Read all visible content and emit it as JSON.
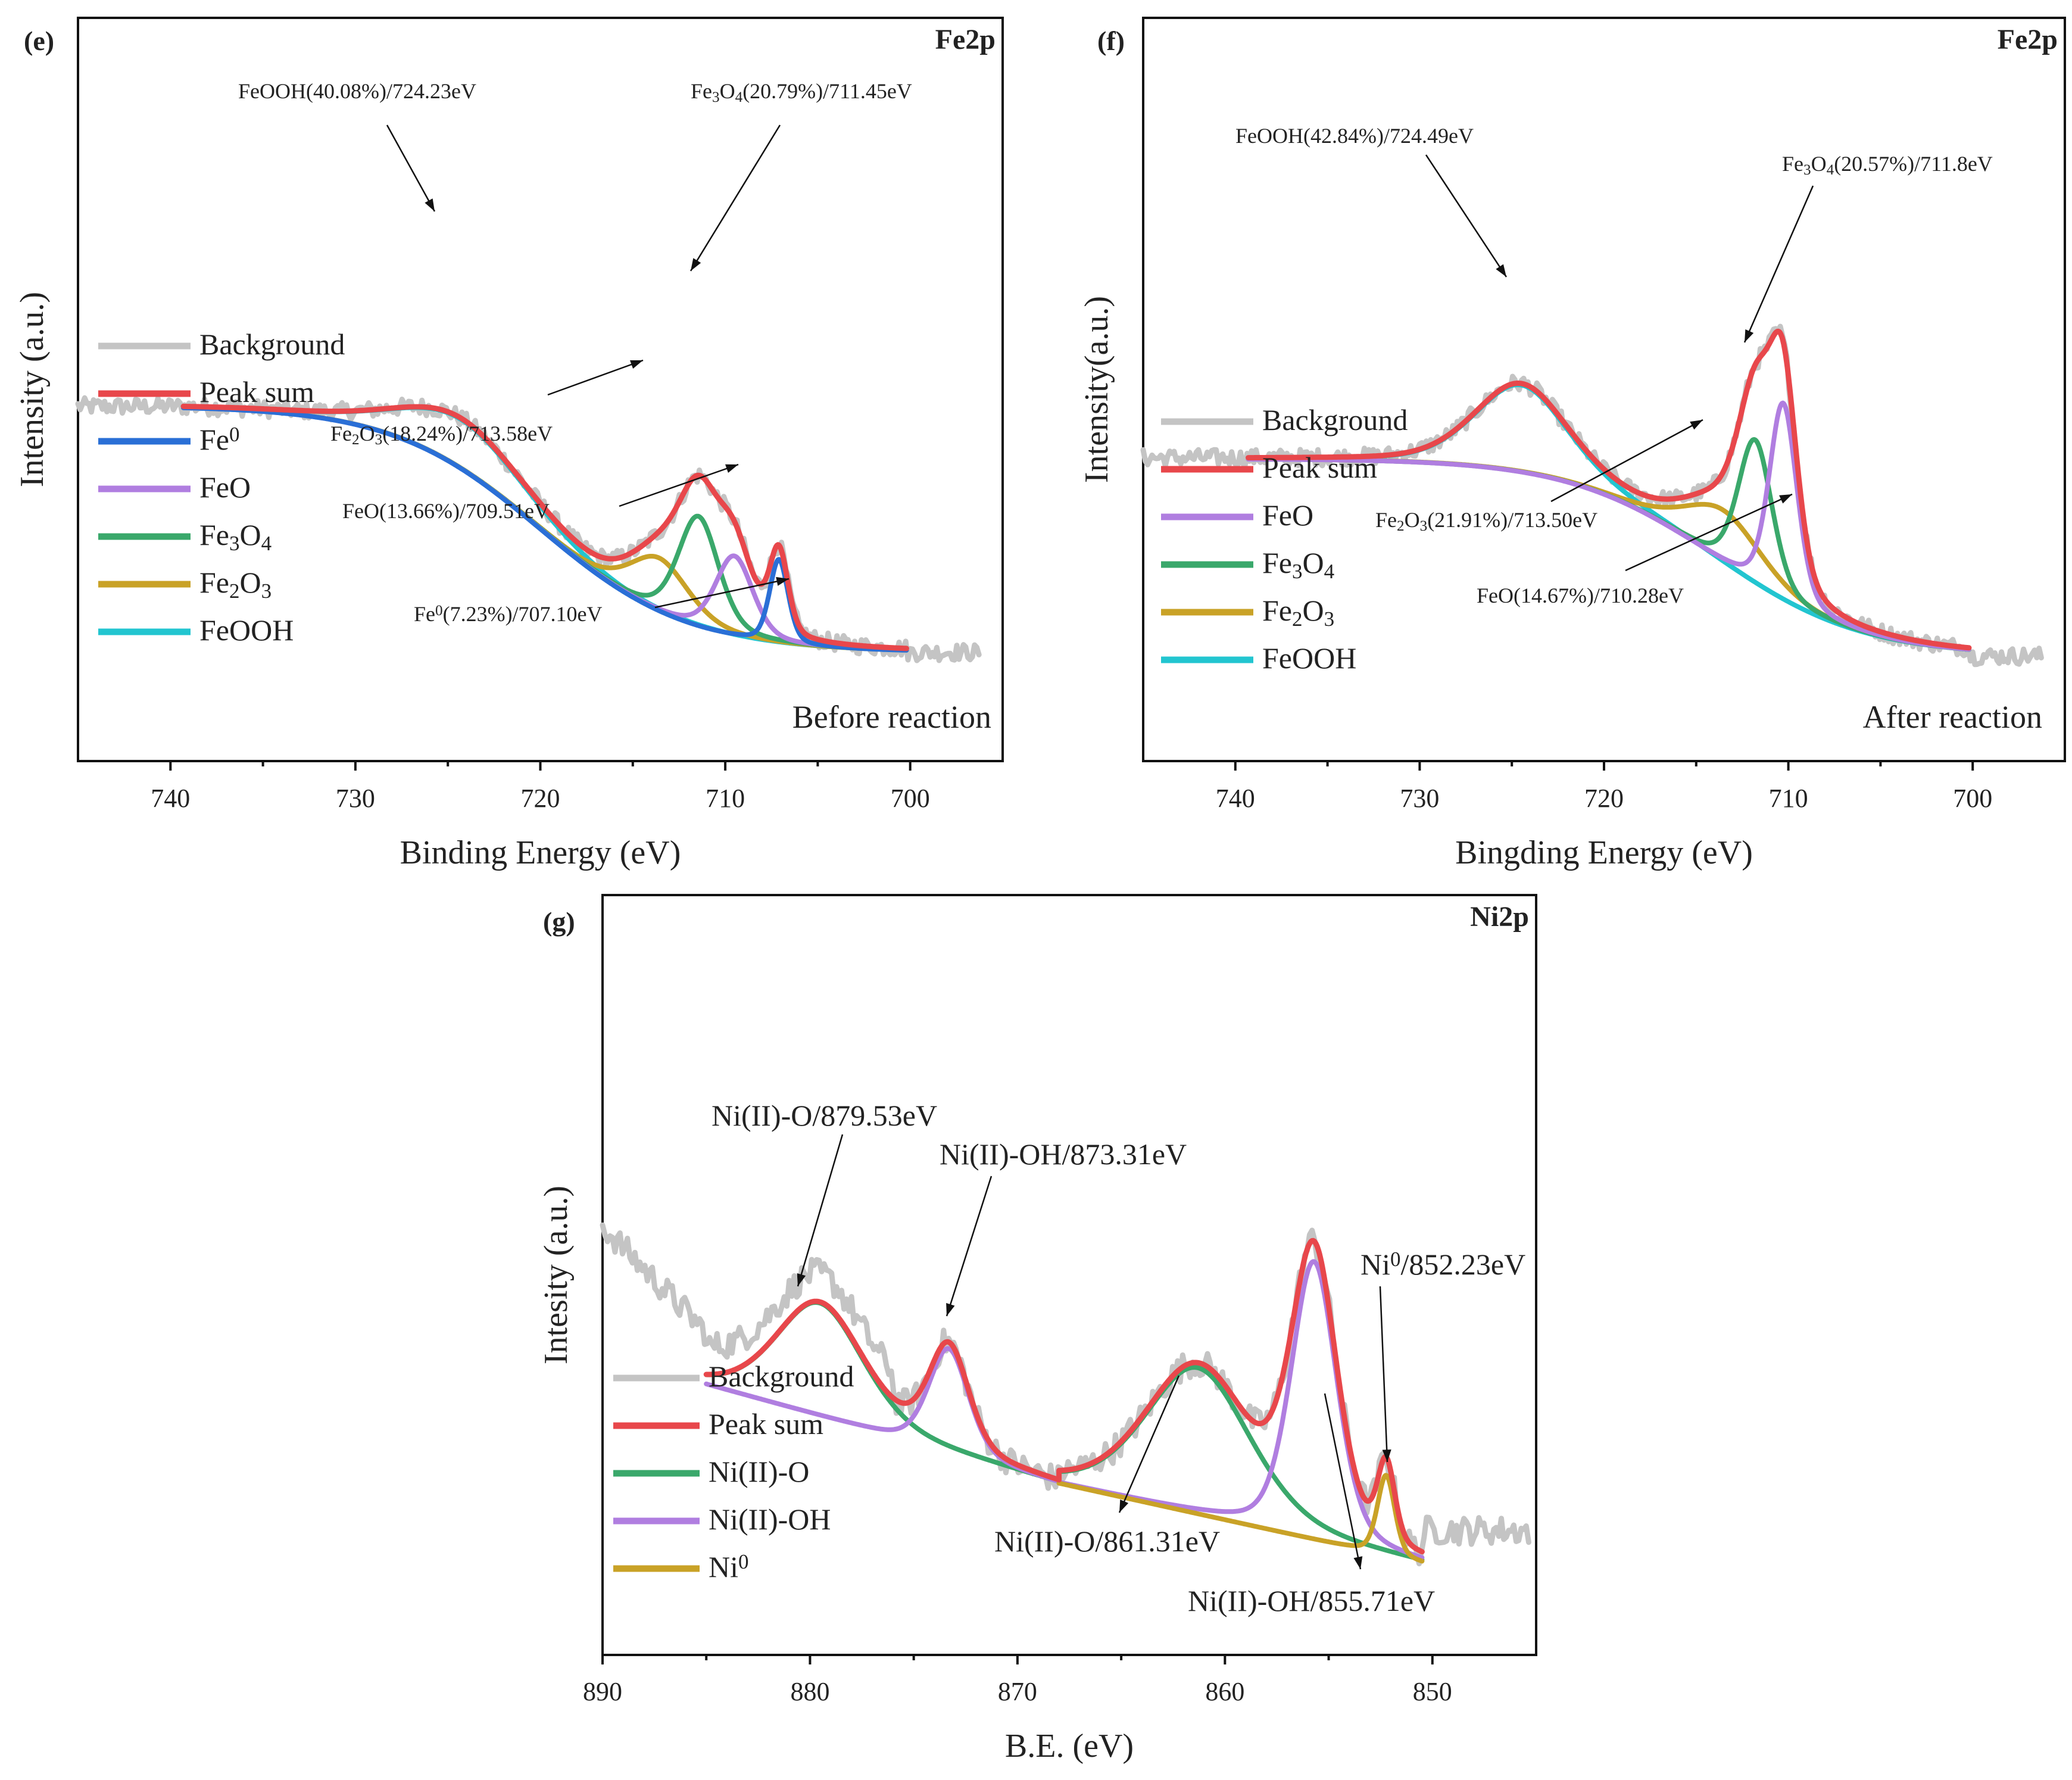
{
  "chart_data": [
    {
      "panel": "(e)",
      "type": "line",
      "element": "Fe2p",
      "condition": "Before reaction",
      "xlabel": "Binding Energy (eV)",
      "ylabel": "Intensity (a.u.)",
      "xlim": [
        745,
        695
      ],
      "ylim": [
        0,
        1
      ],
      "x_ticks": [
        "740",
        "730",
        "720",
        "710",
        "700"
      ],
      "legend": [
        {
          "id": "background",
          "label": "Background",
          "color": "#c4c4c4"
        },
        {
          "id": "peak_sum",
          "label": "Peak sum",
          "color": "#e8474b"
        },
        {
          "id": "fe0",
          "label": "Fe",
          "sup": "0",
          "color": "#2a6fd6"
        },
        {
          "id": "feo",
          "label": "FeO",
          "color": "#b07ee0"
        },
        {
          "id": "fe3o4",
          "label": "Fe",
          "sub1": "3",
          "mid": "O",
          "sub2": "4",
          "color": "#3aa86b"
        },
        {
          "id": "fe2o3",
          "label": "Fe",
          "sub1": "2",
          "mid": "O",
          "sub2": "3",
          "color": "#c9a227"
        },
        {
          "id": "feooh",
          "label": "FeOOH",
          "color": "#22c5d0"
        }
      ],
      "baseline": {
        "x_start": 739.3,
        "x_end": 700.2,
        "y_left": 0.8,
        "y_right": 0.15,
        "center": 720,
        "width": 4
      },
      "components": [
        {
          "id": "feooh",
          "center": 724.23,
          "fwhm": 8.0,
          "height": 0.13,
          "percent": "40.08%"
        },
        {
          "id": "fe2o3",
          "center": 713.58,
          "fwhm": 3.8,
          "height": 0.14,
          "percent": "18.24%"
        },
        {
          "id": "fe3o4",
          "center": 711.45,
          "fwhm": 2.6,
          "height": 0.29,
          "percent": "20.79%"
        },
        {
          "id": "feo",
          "center": 709.51,
          "fwhm": 2.4,
          "height": 0.21,
          "percent": "13.66%"
        },
        {
          "id": "fe0",
          "center": 707.1,
          "fwhm": 1.2,
          "height": 0.22,
          "percent": "7.23%"
        }
      ],
      "annotations": [
        {
          "parts": [
            {
              "t": "FeOOH(40.08%)/724.23eV"
            }
          ]
        },
        {
          "parts": [
            {
              "t": "Fe"
            },
            {
              "t": "3",
              "sub": true
            },
            {
              "t": "O"
            },
            {
              "t": "4",
              "sub": true
            },
            {
              "t": "(20.79%)/711.45eV"
            }
          ]
        },
        {
          "parts": [
            {
              "t": "Fe"
            },
            {
              "t": "2",
              "sub": true
            },
            {
              "t": "O"
            },
            {
              "t": "3",
              "sub": true
            },
            {
              "t": "(18.24%)/713.58eV"
            }
          ]
        },
        {
          "parts": [
            {
              "t": "FeO(13.66%)/709.51eV"
            }
          ]
        },
        {
          "parts": [
            {
              "t": "Fe"
            },
            {
              "t": "0",
              "sup": true
            },
            {
              "t": "(7.23%)/707.10eV"
            }
          ]
        }
      ]
    },
    {
      "panel": "(f)",
      "type": "line",
      "element": "Fe2p",
      "condition": "After reaction",
      "xlabel": "Bingding Energy (eV)",
      "ylabel": "Intensity(a.u.)",
      "xlim": [
        745,
        695
      ],
      "ylim": [
        0,
        1
      ],
      "x_ticks": [
        "740",
        "730",
        "720",
        "710",
        "700"
      ],
      "legend": [
        {
          "id": "background",
          "label": "Background",
          "color": "#c4c4c4"
        },
        {
          "id": "peak_sum",
          "label": "Peak sum",
          "color": "#e8474b"
        },
        {
          "id": "feo",
          "label": "FeO",
          "color": "#b07ee0"
        },
        {
          "id": "fe3o4",
          "label": "Fe",
          "sub1": "3",
          "mid": "O",
          "sub2": "4",
          "color": "#3aa86b"
        },
        {
          "id": "fe2o3",
          "label": "Fe",
          "sub1": "2",
          "mid": "O",
          "sub2": "3",
          "color": "#c9a227"
        },
        {
          "id": "feooh",
          "label": "FeOOH",
          "color": "#22c5d0"
        }
      ],
      "baseline": {
        "x_start": 739.3,
        "x_end": 700.2,
        "y_left": 0.66,
        "y_right": 0.14,
        "center": 714,
        "width": 4
      },
      "components": [
        {
          "id": "feooh",
          "center": 724.49,
          "fwhm": 6.0,
          "height": 0.23,
          "percent": "42.84%"
        },
        {
          "id": "fe2o3",
          "center": 713.5,
          "fwhm": 5.0,
          "height": 0.14,
          "percent": "21.91%"
        },
        {
          "id": "fe3o4",
          "center": 711.8,
          "fwhm": 2.2,
          "height": 0.38,
          "percent": "20.57%"
        },
        {
          "id": "feo",
          "center": 710.28,
          "fwhm": 1.8,
          "height": 0.52,
          "percent": "14.67%"
        }
      ],
      "annotations": [
        {
          "parts": [
            {
              "t": "FeOOH(42.84%)/724.49eV"
            }
          ]
        },
        {
          "parts": [
            {
              "t": "Fe"
            },
            {
              "t": "3",
              "sub": true
            },
            {
              "t": "O"
            },
            {
              "t": "4",
              "sub": true
            },
            {
              "t": "(20.57%)/711.8eV"
            }
          ]
        },
        {
          "parts": [
            {
              "t": "Fe"
            },
            {
              "t": "2",
              "sub": true
            },
            {
              "t": "O"
            },
            {
              "t": "3",
              "sub": true
            },
            {
              "t": "(21.91%)/713.50eV"
            }
          ]
        },
        {
          "parts": [
            {
              "t": "FeO(14.67%)/710.28eV"
            }
          ]
        }
      ]
    },
    {
      "panel": "(g)",
      "type": "line",
      "element": "Ni2p",
      "condition": "",
      "xlabel": "B.E. (eV)",
      "ylabel": "Intesity (a.u.)",
      "xlim": [
        890,
        845
      ],
      "ylim": [
        0,
        1
      ],
      "x_ticks": [
        "890",
        "880",
        "870",
        "860",
        "850"
      ],
      "legend": [
        {
          "id": "background",
          "label": "Background",
          "color": "#c4c4c4"
        },
        {
          "id": "peak_sum",
          "label": "Peak sum",
          "color": "#e8474b"
        },
        {
          "id": "nio",
          "label": " Ni(II)-O",
          "color": "#3aa86b"
        },
        {
          "id": "nioh",
          "label": " Ni(II)-OH",
          "color": "#b07ee0"
        },
        {
          "id": "ni0",
          "label": " Ni",
          "sup": "0",
          "color": "#c9a227"
        }
      ],
      "envelopes": [
        {
          "range": [
            885.0,
            868.0
          ],
          "baseline": {
            "y_left": 0.51,
            "y_right": 0.3
          },
          "components": [
            {
              "id": "nio",
              "center": 879.53,
              "fwhm": 5.0,
              "height": 0.24
            },
            {
              "id": "nioh",
              "center": 873.31,
              "fwhm": 2.3,
              "height": 0.22
            }
          ]
        },
        {
          "range": [
            868.0,
            850.5
          ],
          "baseline": {
            "y_left": 0.3,
            "y_right": 0.13
          },
          "components": [
            {
              "id": "nio",
              "center": 861.31,
              "fwhm": 6.0,
              "height": 0.31
            },
            {
              "id": "nioh",
              "center": 855.71,
              "fwhm": 2.6,
              "height": 0.59
            },
            {
              "id": "ni0",
              "center": 852.23,
              "fwhm": 1.0,
              "height": 0.17
            }
          ]
        }
      ],
      "annotations": [
        {
          "parts": [
            {
              "t": "Ni(II)-O/879.53eV"
            }
          ]
        },
        {
          "parts": [
            {
              "t": "Ni(II)-OH/873.31eV"
            }
          ]
        },
        {
          "parts": [
            {
              "t": "Ni"
            },
            {
              "t": "0",
              "sup": true
            },
            {
              "t": "/852.23eV"
            }
          ]
        },
        {
          "parts": [
            {
              "t": "Ni(II)-O/861.31eV"
            }
          ]
        },
        {
          "parts": [
            {
              "t": "Ni(II)-OH/855.71eV"
            }
          ]
        }
      ]
    }
  ]
}
